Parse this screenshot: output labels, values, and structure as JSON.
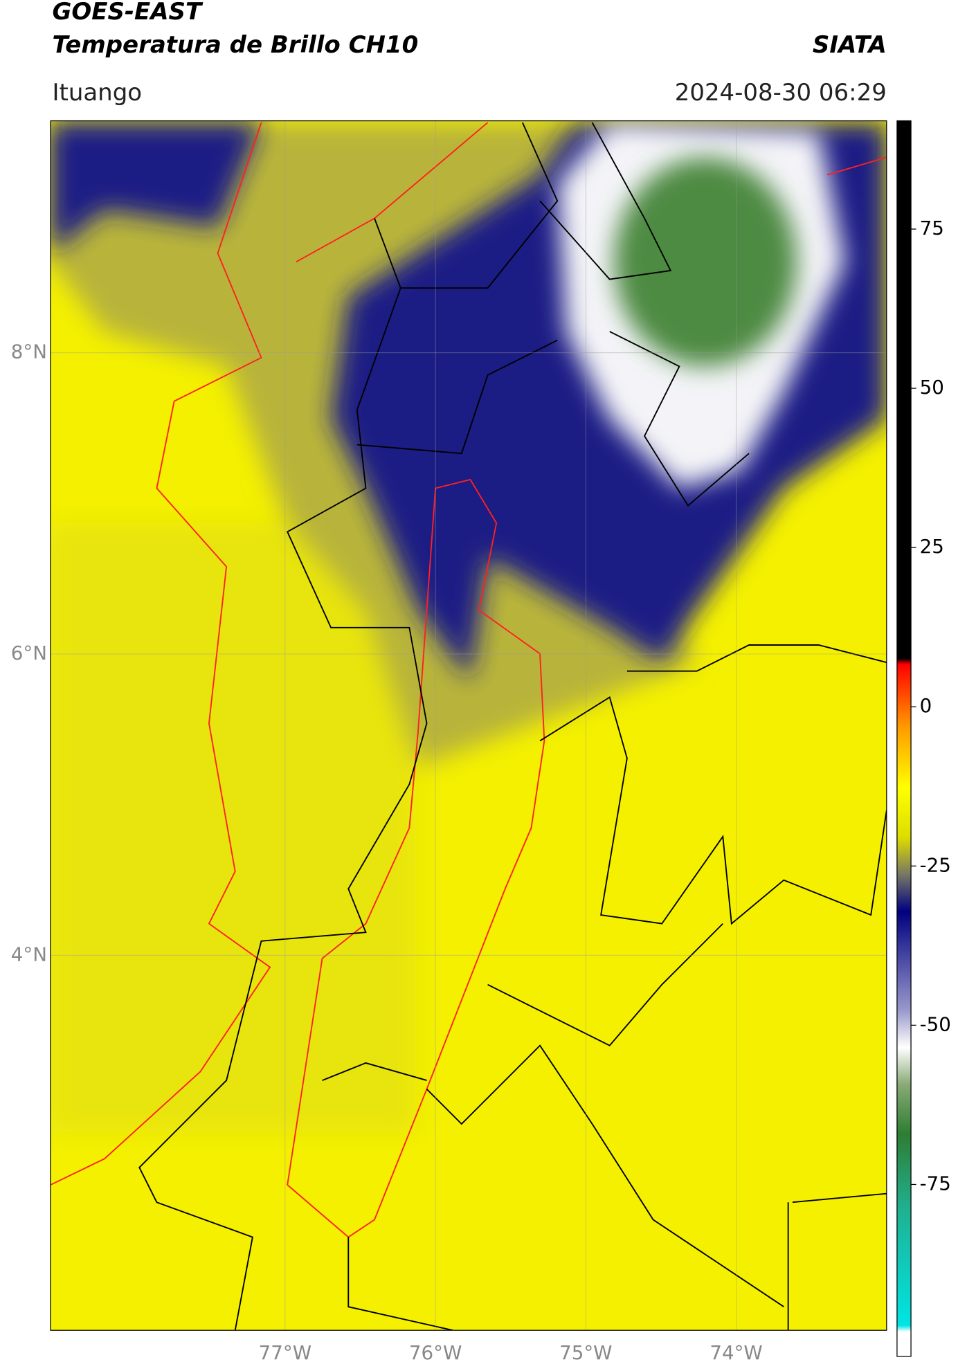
{
  "header": {
    "title": "GOES-EAST",
    "subtitle": "Temperatura de Brillo CH10",
    "brand": "SIATA",
    "region": "Ituango",
    "timestamp": "2024-08-30 06:29"
  },
  "map": {
    "xlim": [
      -78.56,
      -73.0
    ],
    "ylim": [
      1.51,
      9.54
    ],
    "xticks": [
      {
        "value": -77,
        "label": "77°W"
      },
      {
        "value": -76,
        "label": "76°W"
      },
      {
        "value": -75,
        "label": "75°W"
      },
      {
        "value": -74,
        "label": "74°W"
      }
    ],
    "yticks": [
      {
        "value": 8,
        "label": "8°N"
      },
      {
        "value": 6,
        "label": "6°N"
      },
      {
        "value": 4,
        "label": "4°N"
      }
    ]
  },
  "colorbar": {
    "lim": [
      -102,
      92
    ],
    "ticks": [
      75,
      50,
      25,
      0,
      -25,
      -50,
      -75
    ]
  }
}
